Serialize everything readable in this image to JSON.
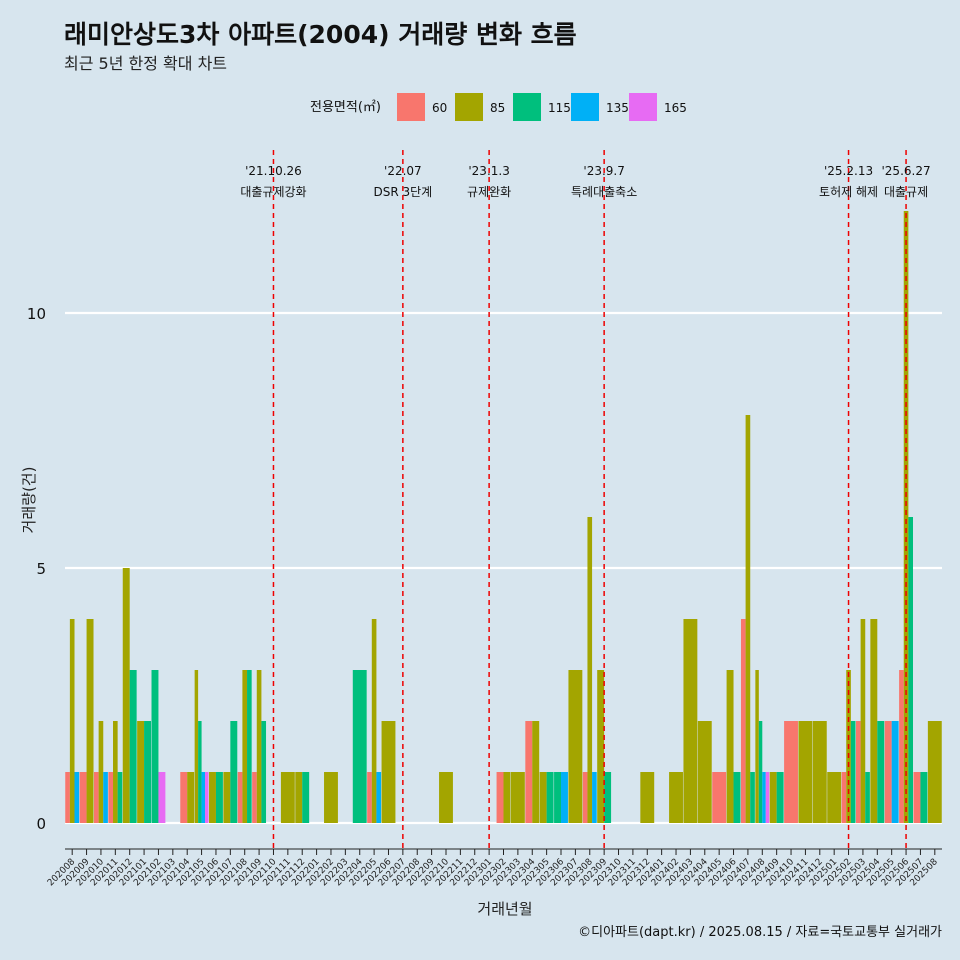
{
  "chart_data": {
    "type": "bar",
    "title": "래미안상도3차 아파트(2004) 거래량 변화 흐름",
    "subtitle": "최근 5년 한정 확대 차트",
    "xlabel": "거래년월",
    "ylabel": "거래량(건)",
    "ylim": [
      -0.5,
      12.5
    ],
    "yticks": [
      0,
      5,
      10
    ],
    "legend": {
      "title": "전용면적(㎡)",
      "position": "top"
    },
    "caption": "©디아파트(dapt.kr) / 2025.08.15 / 자료=국토교통부 실거래가",
    "months": [
      "202008",
      "202009",
      "202010",
      "202011",
      "202012",
      "202101",
      "202102",
      "202103",
      "202104",
      "202105",
      "202106",
      "202107",
      "202108",
      "202109",
      "202110",
      "202111",
      "202112",
      "202201",
      "202202",
      "202203",
      "202204",
      "202205",
      "202206",
      "202207",
      "202208",
      "202209",
      "202210",
      "202211",
      "202212",
      "202301",
      "202302",
      "202303",
      "202304",
      "202305",
      "202306",
      "202307",
      "202308",
      "202309",
      "202310",
      "202311",
      "202312",
      "202401",
      "202402",
      "202403",
      "202404",
      "202405",
      "202406",
      "202407",
      "202408",
      "202409",
      "202410",
      "202411",
      "202412",
      "202501",
      "202502",
      "202503",
      "202504",
      "202505",
      "202506",
      "202507",
      "202508"
    ],
    "series": [
      {
        "name": "60",
        "color": "#f8766d",
        "values": [
          1,
          1,
          1,
          1,
          0,
          0,
          0,
          0,
          1,
          0,
          0,
          0,
          1,
          1,
          0,
          0,
          0,
          0,
          0,
          0,
          0,
          1,
          0,
          0,
          0,
          0,
          0,
          0,
          0,
          0,
          1,
          0,
          2,
          0,
          0,
          0,
          1,
          0,
          0,
          0,
          0,
          0,
          0,
          0,
          0,
          1,
          0,
          4,
          0,
          0,
          2,
          0,
          0,
          0,
          1,
          2,
          0,
          2,
          3,
          1,
          0
        ]
      },
      {
        "name": "85",
        "color": "#a3a500",
        "values": [
          4,
          4,
          2,
          2,
          5,
          2,
          0,
          0,
          1,
          3,
          1,
          1,
          3,
          3,
          0,
          1,
          1,
          0,
          1,
          0,
          0,
          4,
          2,
          0,
          0,
          0,
          1,
          0,
          0,
          0,
          1,
          1,
          2,
          1,
          0,
          3,
          6,
          3,
          0,
          0,
          1,
          0,
          1,
          4,
          2,
          0,
          3,
          8,
          3,
          1,
          0,
          2,
          2,
          1,
          3,
          4,
          4,
          0,
          12,
          0,
          2
        ]
      },
      {
        "name": "115",
        "color": "#00bf7d",
        "values": [
          0,
          0,
          0,
          1,
          3,
          2,
          3,
          0,
          0,
          2,
          1,
          2,
          3,
          2,
          0,
          0,
          1,
          0,
          0,
          0,
          3,
          0,
          0,
          0,
          0,
          0,
          0,
          0,
          0,
          0,
          0,
          0,
          0,
          1,
          1,
          0,
          0,
          1,
          0,
          0,
          0,
          0,
          0,
          0,
          0,
          0,
          1,
          1,
          2,
          1,
          0,
          0,
          0,
          0,
          2,
          1,
          2,
          0,
          6,
          1,
          0
        ]
      },
      {
        "name": "135",
        "color": "#00b0f6",
        "values": [
          1,
          0,
          1,
          0,
          0,
          0,
          0,
          0,
          0,
          1,
          0,
          0,
          0,
          0,
          0,
          0,
          0,
          0,
          0,
          0,
          0,
          1,
          0,
          0,
          0,
          0,
          0,
          0,
          0,
          0,
          0,
          0,
          0,
          0,
          1,
          0,
          1,
          0,
          0,
          0,
          0,
          0,
          0,
          0,
          0,
          0,
          0,
          0,
          1,
          0,
          0,
          0,
          0,
          0,
          0,
          0,
          0,
          2,
          0,
          0,
          0
        ]
      },
      {
        "name": "165",
        "color": "#e76bf3",
        "values": [
          0,
          0,
          0,
          0,
          0,
          0,
          1,
          0,
          0,
          1,
          0,
          0,
          0,
          0,
          0,
          0,
          0,
          0,
          0,
          0,
          0,
          0,
          0,
          0,
          0,
          0,
          0,
          0,
          0,
          0,
          0,
          0,
          0,
          0,
          0,
          0,
          0,
          0,
          0,
          0,
          0,
          0,
          0,
          0,
          0,
          0,
          0,
          0,
          1,
          0,
          0,
          0,
          0,
          0,
          0,
          0,
          0,
          0,
          0,
          0,
          0
        ]
      }
    ],
    "annotations": [
      {
        "month": "202110",
        "date": "'21.10.26",
        "label": "대출규제강화"
      },
      {
        "month": "202207",
        "date": "'22.07",
        "label": "DSR 3단계"
      },
      {
        "month": "202301",
        "date": "'23.1.3",
        "label": "규제완화"
      },
      {
        "month": "202309",
        "date": "'23.9.7",
        "label": "특례대출축소"
      },
      {
        "month": "202502",
        "date": "'25.2.13",
        "label": "토허제 해제"
      },
      {
        "month": "202506",
        "date": "'25.6.27",
        "label": "대출규제"
      }
    ],
    "reference_line_color": "#ee0000",
    "background_color": "#d7e5ee"
  }
}
